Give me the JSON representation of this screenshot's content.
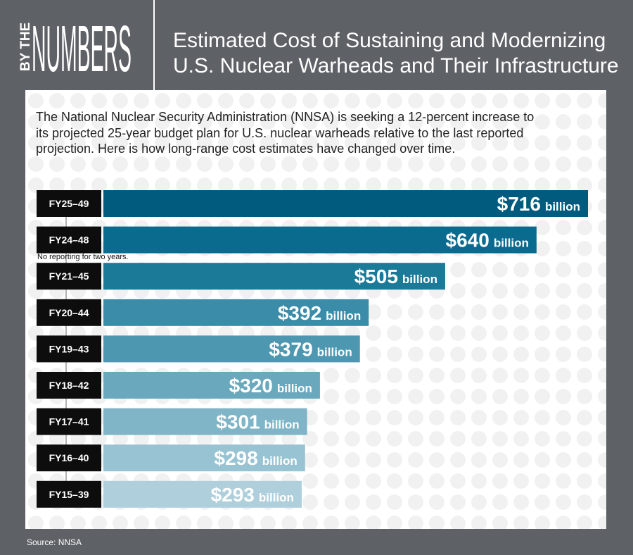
{
  "header": {
    "logo_prefix": "BY THE",
    "logo_word": "NUMBERS",
    "title_line1": "Estimated Cost of Sustaining and Modernizing",
    "title_line2": "U.S. Nuclear Warheads and Their Infrastructure"
  },
  "intro": {
    "line1": "The National Nuclear Security Administration (NNSA) is seeking a 12-percent increase to",
    "line2": "its projected 25-year budget plan for U.S. nuclear warheads relative to the last reported",
    "line3": "projection. Here is how long-range cost estimates have changed over time."
  },
  "note": "No reporting for two years.",
  "source": "Source: NNSA",
  "colors": {
    "background": "#5e6166",
    "panel": "#ffffff",
    "label_box": "#0d0d0d",
    "bars": [
      "#005b7f",
      "#0b6b8e",
      "#1b7a98",
      "#3a8ca8",
      "#4d97b0",
      "#6aa8bd",
      "#7fb5c7",
      "#98c3d2",
      "#aecfdb"
    ]
  },
  "chart_data": {
    "type": "bar",
    "orientation": "horizontal",
    "categories": [
      "FY25–49",
      "FY24–48",
      "FY21–45",
      "FY20–44",
      "FY19–43",
      "FY18–42",
      "FY17–41",
      "FY16–40",
      "FY15–39"
    ],
    "values": [
      716,
      640,
      505,
      392,
      379,
      320,
      301,
      298,
      293
    ],
    "value_labels": [
      "$716",
      "$640",
      "$505",
      "$392",
      "$379",
      "$320",
      "$301",
      "$298",
      "$293"
    ],
    "unit_label": "billion",
    "unit": "billion USD",
    "xlim": [
      0,
      716
    ],
    "grid": false,
    "legend": "none"
  }
}
